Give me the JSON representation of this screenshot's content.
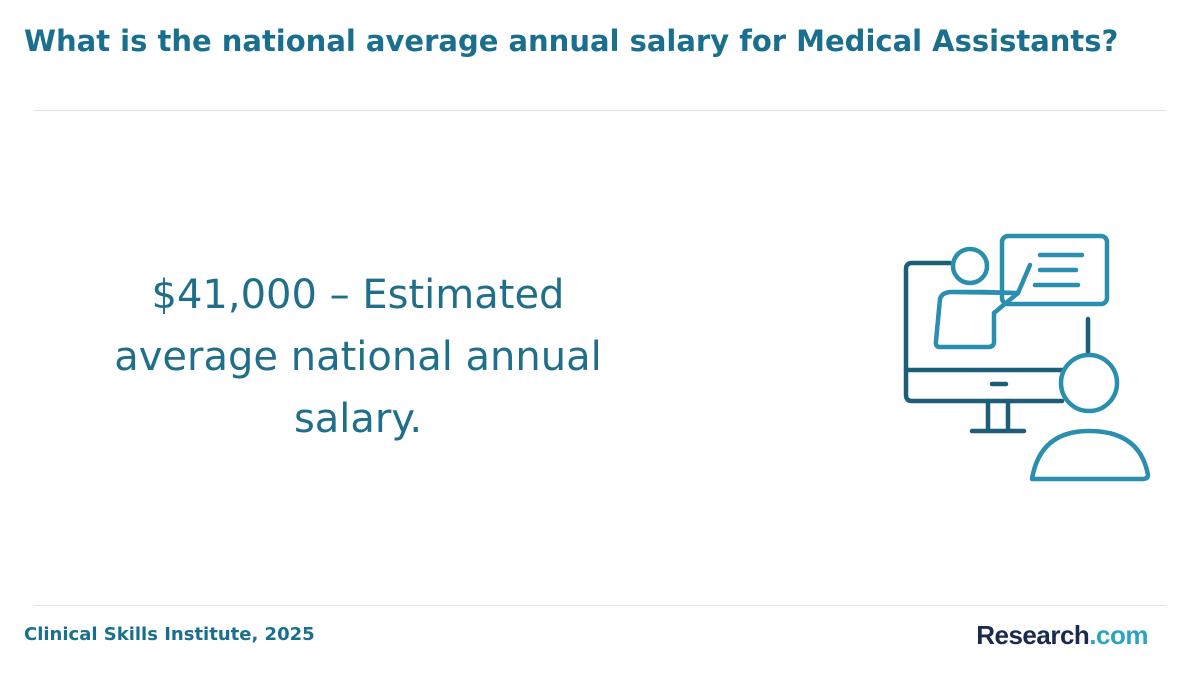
{
  "header": {
    "title": "What is the national average annual salary for Medical Assistants?"
  },
  "statement": {
    "text": "$41,000 – Estimated average national annual salary."
  },
  "footer": {
    "source": "Clinical Skills Institute, 2025",
    "logo": {
      "parts": [
        "Research",
        ".com"
      ]
    }
  }
}
